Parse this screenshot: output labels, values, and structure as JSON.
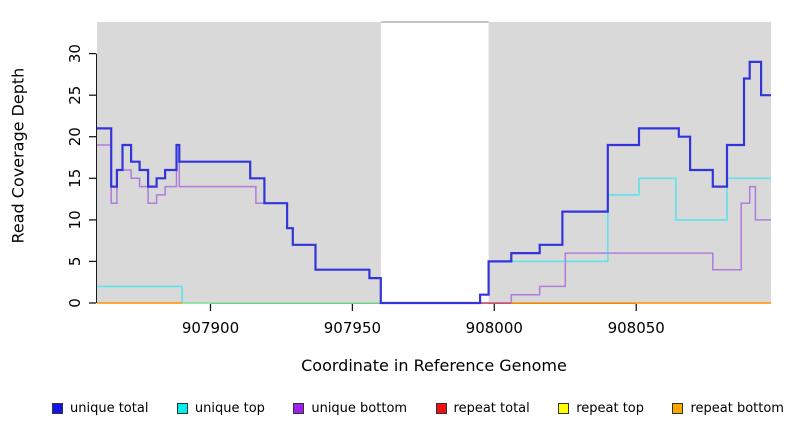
{
  "chart_data": {
    "type": "line",
    "step": true,
    "title": "",
    "xlabel": "Coordinate in Reference Genome",
    "ylabel": "Read Coverage Depth",
    "xlim": [
      907860,
      908097.5
    ],
    "ylim": [
      0,
      33.8
    ],
    "grid": false,
    "x_ticks": [
      907900,
      907950,
      908000,
      908050
    ],
    "x_tick_labels": [
      "907900",
      "907950",
      "908000",
      "908050"
    ],
    "y_ticks": [
      0,
      5,
      10,
      15,
      20,
      25,
      30
    ],
    "y_tick_labels": [
      "0",
      "5",
      "10",
      "15",
      "20",
      "25",
      "30"
    ],
    "plot_bg_color": "#ffffff",
    "shaded_region_color": "#d9d9d9",
    "shaded_regions": [
      {
        "x0": 907860,
        "x1": 907960
      },
      {
        "x0": 907998,
        "x1": 908097.5
      }
    ],
    "gap_top_line": {
      "x0": 907960,
      "x1": 907998,
      "color": "#b3b3b3"
    },
    "series": [
      {
        "name": "unique top",
        "color": "#5fe3ec",
        "width": 1.6,
        "points": [
          [
            907860,
            2
          ],
          [
            907890,
            0
          ],
          [
            907995,
            1
          ],
          [
            907998,
            5
          ],
          [
            908040,
            13
          ],
          [
            908051,
            15
          ],
          [
            908064,
            10
          ],
          [
            908082,
            15
          ]
        ]
      },
      {
        "name": "repeat top",
        "color": "#98df98",
        "width": 1.5,
        "end": 907998,
        "points": [
          [
            907890,
            0
          ]
        ]
      },
      {
        "name": "unique bottom",
        "color": "#b07cdc",
        "width": 1.5,
        "points": [
          [
            907860,
            19
          ],
          [
            907865,
            12
          ],
          [
            907867,
            16
          ],
          [
            907872,
            15
          ],
          [
            907875,
            14
          ],
          [
            907878,
            12
          ],
          [
            907881,
            13
          ],
          [
            907884,
            14
          ],
          [
            907888,
            17
          ],
          [
            907889,
            14
          ],
          [
            907916,
            12
          ],
          [
            907927,
            9
          ],
          [
            907929,
            7
          ],
          [
            907937,
            4
          ],
          [
            907956,
            3
          ],
          [
            907960,
            0
          ],
          [
            908006,
            1
          ],
          [
            908016,
            2
          ],
          [
            908025,
            6
          ],
          [
            908077,
            4
          ],
          [
            908087,
            12
          ],
          [
            908090,
            14
          ],
          [
            908092,
            10
          ]
        ]
      },
      {
        "name": "repeat total",
        "color": "#d85c6e",
        "width": 1.5,
        "end": 908006,
        "points": [
          [
            907995,
            0
          ]
        ]
      },
      {
        "name": "repeat bottom",
        "color": "#ff9d1e",
        "width": 1.8,
        "end": 907890,
        "points": [
          [
            907860,
            0
          ]
        ]
      },
      {
        "name": "repeat bottom",
        "color": "#ff9d1e",
        "width": 1.8,
        "points": [
          [
            908006,
            0
          ]
        ]
      },
      {
        "name": "unique total",
        "color": "#3335db",
        "width": 2.2,
        "points": [
          [
            907860,
            21
          ],
          [
            907865,
            14
          ],
          [
            907867,
            16
          ],
          [
            907869,
            19
          ],
          [
            907872,
            17
          ],
          [
            907875,
            16
          ],
          [
            907878,
            14
          ],
          [
            907881,
            15
          ],
          [
            907884,
            16
          ],
          [
            907888,
            19
          ],
          [
            907889,
            17
          ],
          [
            907914,
            15
          ],
          [
            907919,
            12
          ],
          [
            907927,
            9
          ],
          [
            907929,
            7
          ],
          [
            907937,
            4
          ],
          [
            907956,
            3
          ],
          [
            907960,
            0
          ],
          [
            907995,
            1
          ],
          [
            907998,
            5
          ],
          [
            908006,
            6
          ],
          [
            908016,
            7
          ],
          [
            908024,
            11
          ],
          [
            908040,
            19
          ],
          [
            908051,
            21
          ],
          [
            908065,
            20
          ],
          [
            908069,
            16
          ],
          [
            908077,
            14
          ],
          [
            908082,
            19
          ],
          [
            908088,
            27
          ],
          [
            908090,
            29
          ],
          [
            908094,
            25
          ]
        ]
      }
    ],
    "axis_color": "#1a1a1a",
    "tick_font_px": 15
  },
  "legend": {
    "items": [
      {
        "label": "unique total",
        "color": "#1414e6"
      },
      {
        "label": "unique top",
        "color": "#00f0f0"
      },
      {
        "label": "unique bottom",
        "color": "#a020f0"
      },
      {
        "label": "repeat total",
        "color": "#ee1111"
      },
      {
        "label": "repeat top",
        "color": "#ffff00"
      },
      {
        "label": "repeat bottom",
        "color": "#ffa500"
      }
    ]
  }
}
